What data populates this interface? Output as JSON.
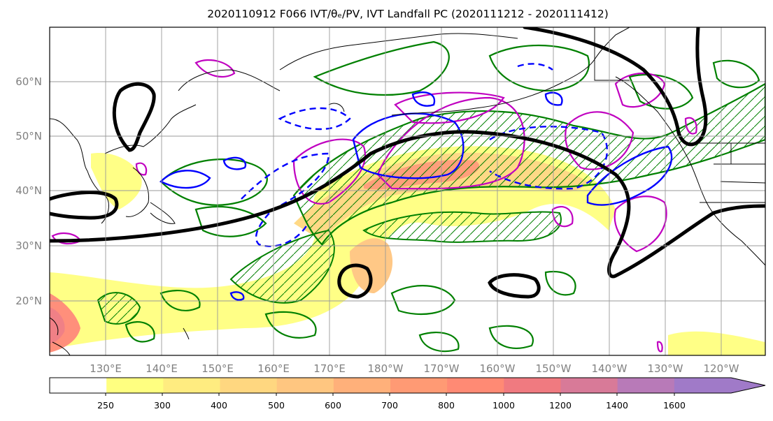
{
  "title": "2020110912 F066 IVT/θₑ/PV, IVT Landfall PC (2020111212 - 2020111412)",
  "map": {
    "lon_labels": [
      "130°E",
      "140°E",
      "150°E",
      "160°E",
      "170°E",
      "180°W",
      "170°W",
      "160°W",
      "150°W",
      "140°W",
      "130°W",
      "120°W"
    ],
    "lat_labels": [
      "60°N",
      "50°N",
      "40°N",
      "30°N",
      "20°N"
    ],
    "contour_colors": {
      "pv": "#000000",
      "theta_e_pos": "#0000ff",
      "theta_e_neg": "#0000ff",
      "ivt_pc": "#008000",
      "pv_anom": "#c000c0"
    }
  },
  "colorbar": {
    "ticks": [
      "250",
      "300",
      "400",
      "500",
      "600",
      "700",
      "800",
      "1000",
      "1200",
      "1400",
      "1600"
    ],
    "colors": [
      "#ffffff",
      "#ffff80",
      "#ffec80",
      "#ffd780",
      "#ffc680",
      "#ffb07a",
      "#ff9a74",
      "#ff8a74",
      "#f07a80",
      "#d87a98",
      "#b87ab8",
      "#a07ac8"
    ]
  }
}
